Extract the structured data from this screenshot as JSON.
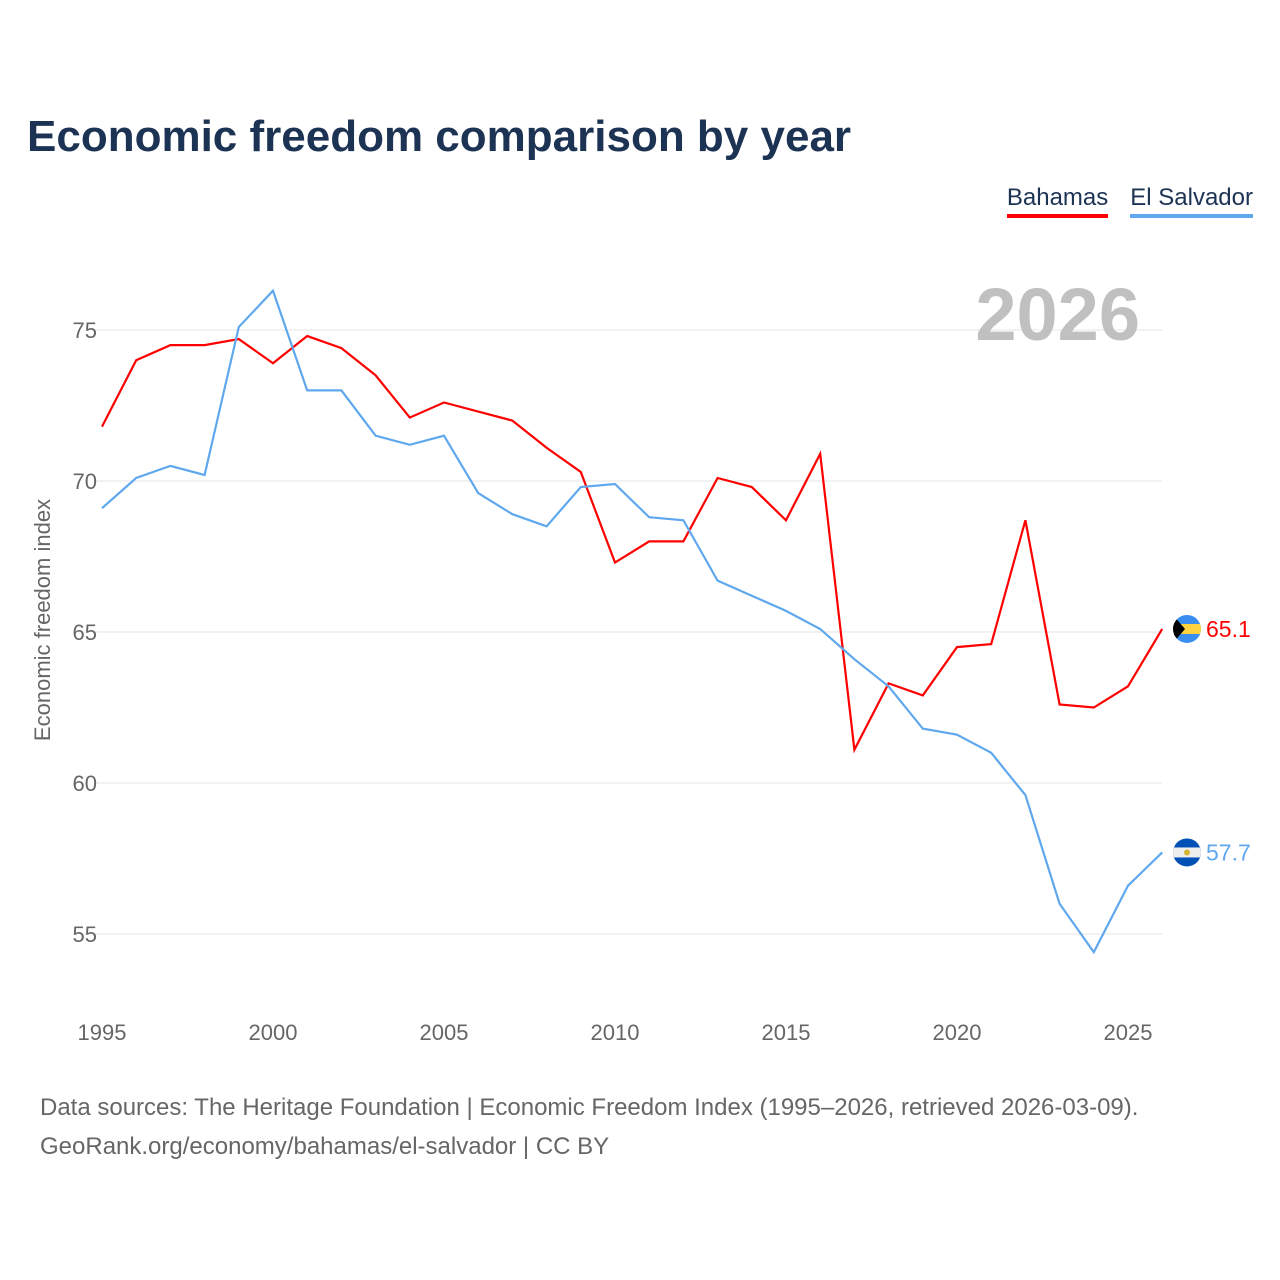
{
  "title": "Economic freedom comparison by year",
  "footer": {
    "line1": "Data sources: The Heritage Foundation | Economic Freedom Index (1995–2026, retrieved 2026-03-09).",
    "line2": "GeoRank.org/economy/bahamas/el-salvador | CC BY"
  },
  "chart_data": {
    "type": "line",
    "title": "Economic freedom comparison by year",
    "ylabel": "Economic freedom index",
    "xlabel": "",
    "year_label": "2026",
    "ylim": [
      53,
      77
    ],
    "xlim": [
      1995,
      2026
    ],
    "yticks": [
      55,
      60,
      65,
      70,
      75
    ],
    "xticks": [
      1995,
      2000,
      2005,
      2010,
      2015,
      2020,
      2025
    ],
    "grid": true,
    "legend_placement": "top-right",
    "x": [
      1995,
      1996,
      1997,
      1998,
      1999,
      2000,
      2001,
      2002,
      2003,
      2004,
      2005,
      2006,
      2007,
      2008,
      2009,
      2010,
      2011,
      2012,
      2013,
      2014,
      2015,
      2016,
      2017,
      2018,
      2019,
      2020,
      2021,
      2022,
      2023,
      2024,
      2025,
      2026
    ],
    "series": [
      {
        "name": "Bahamas",
        "color": "#ff0000",
        "end_label": "65.1",
        "values": [
          71.8,
          74.0,
          74.5,
          74.5,
          74.7,
          73.9,
          74.8,
          74.4,
          73.5,
          72.1,
          72.6,
          72.3,
          72.0,
          71.1,
          70.3,
          67.3,
          68.0,
          68.0,
          70.1,
          69.8,
          68.7,
          70.9,
          61.1,
          63.3,
          62.9,
          64.5,
          64.6,
          68.7,
          62.6,
          62.5,
          63.2,
          65.1
        ]
      },
      {
        "name": "El Salvador",
        "color": "#5fa8ee",
        "end_label": "57.7",
        "values": [
          69.1,
          70.1,
          70.5,
          70.2,
          75.1,
          76.3,
          73.0,
          73.0,
          71.5,
          71.2,
          71.5,
          69.6,
          68.9,
          68.5,
          69.8,
          69.9,
          68.8,
          68.7,
          66.7,
          66.2,
          65.7,
          65.1,
          64.1,
          63.2,
          61.8,
          61.6,
          61.0,
          59.6,
          56.0,
          54.4,
          56.6,
          57.7
        ]
      }
    ]
  }
}
